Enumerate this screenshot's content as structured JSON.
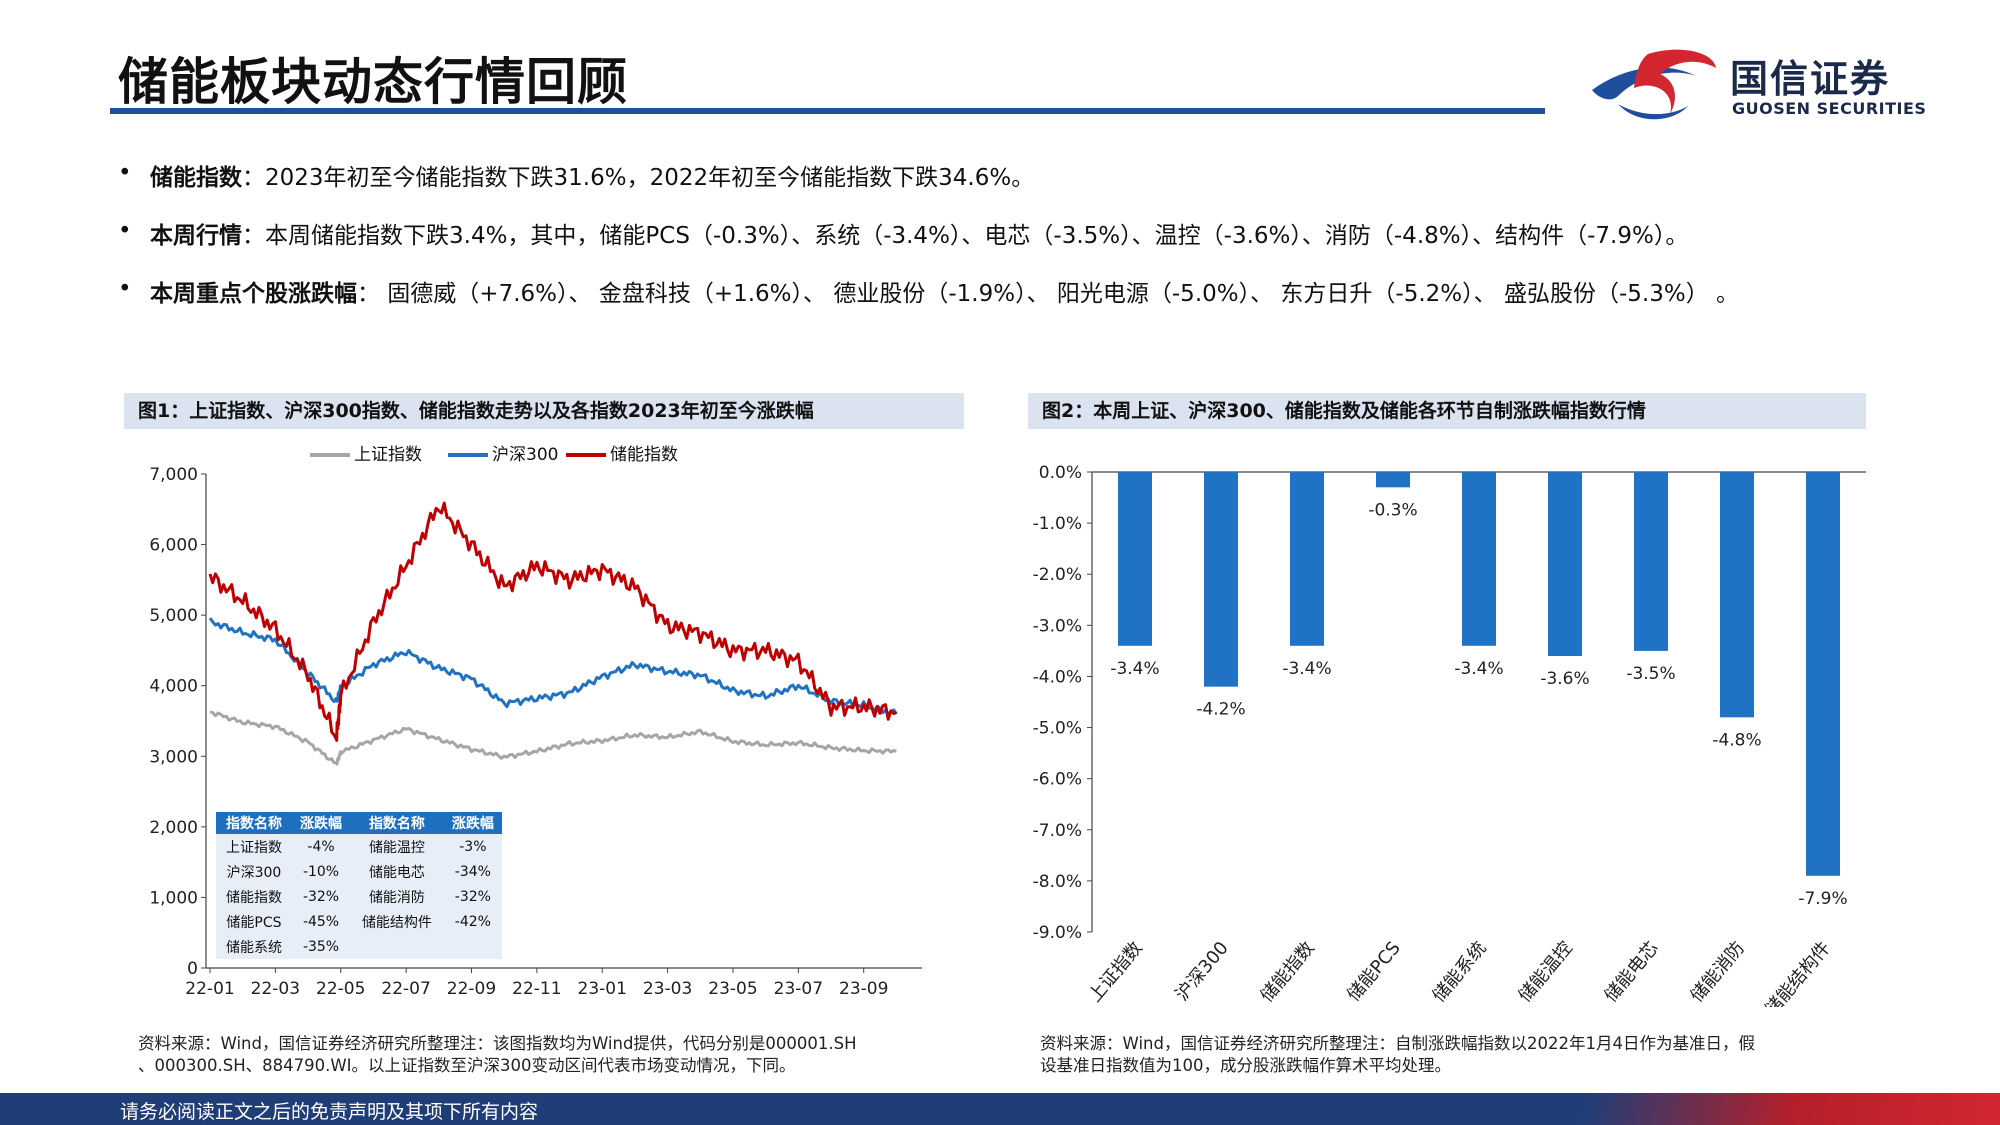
{
  "header": {
    "title": "储能板块动态行情回顾",
    "logo_cn": "国信证券",
    "logo_en": "GUOSEN SECURITIES"
  },
  "bullets": [
    {
      "label": "储能指数",
      "text": "：2023年初至今储能指数下跌31.6%，2022年初至今储能指数下跌34.6%。"
    },
    {
      "label": "本周行情",
      "text": "：本周储能指数下跌3.4%，其中，储能PCS（-0.3%）、系统（-3.4%）、电芯（-3.5%）、温控（-3.6%）、消防（-4.8%）、结构件（-7.9%）。"
    },
    {
      "label": "本周重点个股涨跌幅",
      "text": "：  固德威（+7.6%）、  金盘科技（+1.6%）、  德业股份（-1.9%）、  阳光电源（-5.0%）、  东方日升（-5.2%）、  盛弘股份（-5.3%）  。"
    }
  ],
  "figure1": {
    "caption": "图1：上证指数、沪深300指数、储能指数走势以及各指数2023年初至今涨跌幅",
    "source_line1": "资料来源：Wind，国信证券经济研究所整理注：该图指数均为Wind提供，代码分别是000001.SH",
    "source_line2": "、000300.SH、884790.WI。以上证指数至沪深300变动区间代表市场变动情况，下同。",
    "table_headers": [
      "指数名称",
      "涨跌幅",
      "指数名称",
      "涨跌幅"
    ],
    "table_rows": [
      [
        "上证指数",
        "-4%",
        "储能温控",
        "-3%"
      ],
      [
        "沪深300",
        "-10%",
        "储能电芯",
        "-34%"
      ],
      [
        "储能指数",
        "-32%",
        "储能消防",
        "-32%"
      ],
      [
        "储能PCS",
        "-45%",
        "储能结构件",
        "-42%"
      ],
      [
        "储能系统",
        "-35%",
        "",
        ""
      ]
    ]
  },
  "figure2": {
    "caption": "图2：本周上证、沪深300、储能指数及储能各环节自制涨跌幅指数行情",
    "source_line1": "资料来源：Wind，国信证券经济研究所整理注：自制涨跌幅指数以2022年1月4日作为基准日，假",
    "source_line2": "设基准日指数值为100，成分股涨跌幅作算术平均处理。"
  },
  "footer": {
    "disclaimer": "请务必阅读正文之后的免责声明及其项下所有内容"
  },
  "colors": {
    "shanghai": "#a6a6a6",
    "hs300": "#1f72c4",
    "storage": "#c00000",
    "bar": "#1f72c4",
    "brand_blue": "#1f4e9c",
    "brand_red": "#d22630"
  },
  "chart_data": [
    {
      "type": "line",
      "legend": [
        "上证指数",
        "沪深300",
        "储能指数"
      ],
      "legend_position": "top",
      "x_ticks": [
        "22-01",
        "22-03",
        "22-05",
        "22-07",
        "22-09",
        "22-11",
        "23-01",
        "23-03",
        "23-05",
        "23-07",
        "23-09"
      ],
      "y_ticks": [
        "0",
        "1,000",
        "2,000",
        "3,000",
        "4,000",
        "5,000",
        "6,000",
        "7,000"
      ],
      "ylim": [
        0,
        7000
      ],
      "grid": false,
      "series": [
        {
          "name": "上证指数",
          "x": [
            "22-01",
            "22-02",
            "22-03",
            "22-04",
            "22-04-27",
            "22-05",
            "22-06",
            "22-07",
            "22-08",
            "22-09",
            "22-10",
            "22-11",
            "22-12",
            "23-01",
            "23-02",
            "23-03",
            "23-04",
            "23-05",
            "23-06",
            "23-07",
            "23-08",
            "23-09",
            "23-10"
          ],
          "values": [
            3630,
            3480,
            3420,
            3200,
            2890,
            3060,
            3230,
            3390,
            3240,
            3100,
            2990,
            3070,
            3180,
            3220,
            3300,
            3270,
            3350,
            3210,
            3160,
            3190,
            3120,
            3080,
            3070
          ]
        },
        {
          "name": "沪深300",
          "x": [
            "22-01",
            "22-02",
            "22-03",
            "22-04",
            "22-04-27",
            "22-05",
            "22-06",
            "22-07",
            "22-08",
            "22-09",
            "22-10",
            "22-11",
            "22-12",
            "23-01",
            "23-02",
            "23-03",
            "23-04",
            "23-05",
            "23-06",
            "23-07",
            "23-08",
            "23-09",
            "23-10"
          ],
          "values": [
            4910,
            4750,
            4650,
            4180,
            3770,
            3980,
            4300,
            4480,
            4250,
            4100,
            3750,
            3820,
            3900,
            4130,
            4300,
            4200,
            4150,
            3930,
            3850,
            4000,
            3780,
            3720,
            3600
          ]
        },
        {
          "name": "储能指数",
          "x": [
            "22-01",
            "22-02",
            "22-03",
            "22-04",
            "22-04-27",
            "22-05",
            "22-06",
            "22-07",
            "22-08",
            "22-09",
            "22-10",
            "22-11",
            "22-12",
            "23-01",
            "23-02",
            "23-03",
            "23-04",
            "23-05",
            "23-06",
            "23-07",
            "23-08",
            "23-09",
            "23-10"
          ],
          "values": [
            5550,
            5200,
            4800,
            4150,
            3250,
            3850,
            4900,
            5700,
            6550,
            6000,
            5400,
            5700,
            5500,
            5650,
            5400,
            4850,
            4750,
            4500,
            4500,
            4350,
            3700,
            3700,
            3620
          ]
        }
      ]
    },
    {
      "type": "bar",
      "categories": [
        "上证指数",
        "沪深300",
        "储能指数",
        "储能PCS",
        "储能系统",
        "储能温控",
        "储能电芯",
        "储能消防",
        "储能结构件"
      ],
      "values": [
        -3.4,
        -4.2,
        -3.4,
        -0.3,
        -3.4,
        -3.6,
        -3.5,
        -4.8,
        -7.9
      ],
      "value_labels": [
        "-3.4%",
        "-4.2%",
        "-3.4%",
        "-0.3%",
        "-3.4%",
        "-3.6%",
        "-3.5%",
        "-4.8%",
        "-7.9%"
      ],
      "y_ticks": [
        "0.0%",
        "-1.0%",
        "-2.0%",
        "-3.0%",
        "-4.0%",
        "-5.0%",
        "-6.0%",
        "-7.0%",
        "-8.0%",
        "-9.0%"
      ],
      "ylim": [
        -9,
        0
      ],
      "grid": false
    }
  ]
}
